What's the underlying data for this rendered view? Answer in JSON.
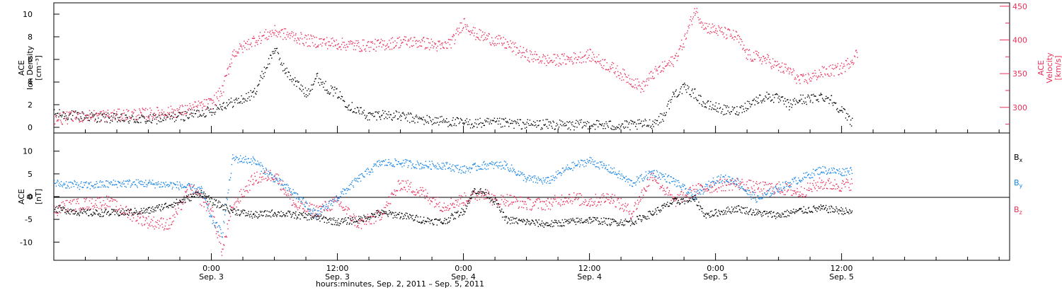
{
  "colors": {
    "density": "#000000",
    "velocity": "#e8305a",
    "bx": "#000000",
    "by": "#1a86e6",
    "bz": "#e8305a",
    "axis": "#000000"
  },
  "x_ticks": [
    {
      "time": "0:00",
      "date": "Sep. 3",
      "hours": 24
    },
    {
      "time": "12:00",
      "date": "Sep. 3",
      "hours": 36
    },
    {
      "time": "0:00",
      "date": "Sep. 4",
      "hours": 48
    },
    {
      "time": "12:00",
      "date": "Sep. 4",
      "hours": 60
    },
    {
      "time": "0:00",
      "date": "Sep. 5",
      "hours": 72
    },
    {
      "time": "12:00",
      "date": "Sep. 5",
      "hours": 84
    }
  ],
  "x_caption": "hours:minutes, Sep.  2, 2011 – Sep.  5, 2011",
  "x_range_hours_from_sep2": [
    9.0,
    100.0
  ],
  "chart_data": [
    {
      "type": "scatter",
      "panel": "top",
      "ylabel": [
        "ACE",
        "Ion Density",
        "[cm⁻³]"
      ],
      "y2label": [
        "ACE",
        "Velocity",
        "[km/s]"
      ],
      "ylim": [
        -0.5,
        11
      ],
      "y2lim": [
        262,
        455
      ],
      "yticks": [
        0,
        2,
        4,
        6,
        8,
        10
      ],
      "y2ticks": [
        300,
        350,
        400,
        450
      ],
      "series": [
        {
          "axis": "left",
          "points": [
            [
              9,
              1.2
            ],
            [
              12,
              1.0
            ],
            [
              15,
              0.8
            ],
            [
              18,
              0.7
            ],
            [
              21,
              1.0
            ],
            [
              24,
              1.5
            ],
            [
              25,
              2.0
            ],
            [
              27,
              2.5
            ],
            [
              28,
              3.0
            ],
            [
              29,
              5.0
            ],
            [
              30,
              7.0
            ],
            [
              31,
              5.0
            ],
            [
              32,
              4.0
            ],
            [
              33,
              3.0
            ],
            [
              34,
              4.5
            ],
            [
              35,
              3.5
            ],
            [
              36,
              3.0
            ],
            [
              37,
              2.0
            ],
            [
              38,
              1.5
            ],
            [
              39,
              1.0
            ],
            [
              40,
              1.2
            ],
            [
              42,
              1.0
            ],
            [
              44,
              0.7
            ],
            [
              46,
              0.6
            ],
            [
              48,
              0.4
            ],
            [
              50,
              0.4
            ],
            [
              52,
              0.4
            ],
            [
              54,
              0.3
            ],
            [
              56,
              0.3
            ],
            [
              58,
              0.2
            ],
            [
              60,
              0.3
            ],
            [
              62,
              0.2
            ],
            [
              64,
              0.2
            ],
            [
              66,
              0.4
            ],
            [
              67,
              1.0
            ],
            [
              68,
              3.0
            ],
            [
              69,
              3.5
            ],
            [
              70,
              3.0
            ],
            [
              71,
              2.0
            ],
            [
              72,
              1.8
            ],
            [
              73,
              1.5
            ],
            [
              74,
              1.5
            ],
            [
              75,
              2.0
            ],
            [
              76,
              2.5
            ],
            [
              77,
              2.8
            ],
            [
              78,
              2.5
            ],
            [
              79,
              2.0
            ],
            [
              80,
              2.5
            ],
            [
              81,
              2.5
            ],
            [
              82,
              2.8
            ],
            [
              83,
              2.5
            ],
            [
              84,
              1.5
            ],
            [
              85,
              0.5
            ]
          ]
        },
        {
          "axis": "right",
          "points": [
            [
              9,
              283
            ],
            [
              12,
              288
            ],
            [
              15,
              289
            ],
            [
              18,
              291
            ],
            [
              21,
              295
            ],
            [
              24,
              307
            ],
            [
              25,
              325
            ],
            [
              26,
              380
            ],
            [
              28,
              400
            ],
            [
              30,
              413
            ],
            [
              32,
              405
            ],
            [
              33,
              400
            ],
            [
              34,
              398
            ],
            [
              36,
              395
            ],
            [
              38,
              392
            ],
            [
              40,
              393
            ],
            [
              42,
              398
            ],
            [
              44,
              397
            ],
            [
              46,
              390
            ],
            [
              47,
              400
            ],
            [
              48,
              428
            ],
            [
              49,
              410
            ],
            [
              50,
              405
            ],
            [
              51,
              400
            ],
            [
              52,
              395
            ],
            [
              54,
              378
            ],
            [
              56,
              370
            ],
            [
              58,
              372
            ],
            [
              60,
              378
            ],
            [
              62,
              360
            ],
            [
              64,
              340
            ],
            [
              65,
              330
            ],
            [
              66,
              350
            ],
            [
              67,
              360
            ],
            [
              68,
              370
            ],
            [
              69,
              400
            ],
            [
              70,
              445
            ],
            [
              71,
              420
            ],
            [
              72,
              415
            ],
            [
              73,
              410
            ],
            [
              74,
              405
            ],
            [
              75,
              378
            ],
            [
              76,
              375
            ],
            [
              77,
              370
            ],
            [
              78,
              360
            ],
            [
              79,
              355
            ],
            [
              80,
              340
            ],
            [
              81,
              345
            ],
            [
              82,
              352
            ],
            [
              83,
              355
            ],
            [
              84,
              358
            ],
            [
              85,
              372
            ],
            [
              85.5,
              382
            ]
          ]
        }
      ]
    },
    {
      "type": "scatter",
      "panel": "bottom",
      "ylabel": [
        "ACE",
        "B",
        "[nT]"
      ],
      "ylim": [
        -14,
        14
      ],
      "yticks": [
        -10,
        -5,
        0,
        5,
        10
      ],
      "legend_position": "right",
      "series": [
        {
          "name": "Bx",
          "points": [
            [
              9,
              -2.5
            ],
            [
              12,
              -3.5
            ],
            [
              15,
              -3.5
            ],
            [
              18,
              -3.0
            ],
            [
              21,
              -1.0
            ],
            [
              23,
              1.0
            ],
            [
              24,
              -1.0
            ],
            [
              26,
              -3.0
            ],
            [
              28,
              -4.0
            ],
            [
              30,
              -3.5
            ],
            [
              32,
              -4.0
            ],
            [
              34,
              -4.5
            ],
            [
              36,
              -5.5
            ],
            [
              38,
              -5.0
            ],
            [
              40,
              -3.5
            ],
            [
              42,
              -4.0
            ],
            [
              44,
              -5.0
            ],
            [
              46,
              -5.5
            ],
            [
              48,
              -3.0
            ],
            [
              49,
              1.5
            ],
            [
              50,
              1.0
            ],
            [
              51,
              -1.0
            ],
            [
              52,
              -5.0
            ],
            [
              54,
              -5.5
            ],
            [
              56,
              -6.0
            ],
            [
              58,
              -5.5
            ],
            [
              60,
              -5.0
            ],
            [
              62,
              -5.5
            ],
            [
              64,
              -5.5
            ],
            [
              66,
              -3.5
            ],
            [
              68,
              -1.0
            ],
            [
              70,
              -0.5
            ],
            [
              71,
              -4.0
            ],
            [
              72,
              -3.5
            ],
            [
              74,
              -2.5
            ],
            [
              76,
              -3.5
            ],
            [
              78,
              -4.0
            ],
            [
              80,
              -3.0
            ],
            [
              82,
              -2.5
            ],
            [
              84,
              -3.0
            ],
            [
              85,
              -3.5
            ]
          ]
        },
        {
          "name": "By",
          "points": [
            [
              9,
              3.0
            ],
            [
              12,
              2.5
            ],
            [
              15,
              3.0
            ],
            [
              18,
              3.0
            ],
            [
              21,
              2.5
            ],
            [
              23,
              1.5
            ],
            [
              24,
              -5.0
            ],
            [
              25,
              -8.0
            ],
            [
              26,
              8.5
            ],
            [
              28,
              8.0
            ],
            [
              30,
              4.0
            ],
            [
              32,
              0.5
            ],
            [
              34,
              -4.0
            ],
            [
              36,
              0.0
            ],
            [
              38,
              4.0
            ],
            [
              40,
              7.5
            ],
            [
              42,
              7.5
            ],
            [
              44,
              7.0
            ],
            [
              46,
              7.0
            ],
            [
              48,
              6.0
            ],
            [
              50,
              7.0
            ],
            [
              52,
              7.0
            ],
            [
              54,
              4.0
            ],
            [
              56,
              3.5
            ],
            [
              58,
              6.5
            ],
            [
              60,
              8.0
            ],
            [
              62,
              6.0
            ],
            [
              64,
              3.0
            ],
            [
              66,
              5.5
            ],
            [
              68,
              3.5
            ],
            [
              70,
              0.0
            ],
            [
              72,
              4.0
            ],
            [
              73,
              4.0
            ],
            [
              74,
              3.5
            ],
            [
              75,
              1.0
            ],
            [
              76,
              -0.5
            ],
            [
              78,
              2.0
            ],
            [
              80,
              4.0
            ],
            [
              82,
              6.0
            ],
            [
              84,
              5.5
            ],
            [
              85,
              6.0
            ]
          ]
        },
        {
          "name": "Bz",
          "points": [
            [
              9,
              -3.0
            ],
            [
              10,
              -2.0
            ],
            [
              12,
              -1.5
            ],
            [
              14,
              -1.0
            ],
            [
              16,
              -3.5
            ],
            [
              18,
              -5.5
            ],
            [
              20,
              -6.0
            ],
            [
              21,
              -2.0
            ],
            [
              22,
              2.0
            ],
            [
              24,
              -3.0
            ],
            [
              25,
              -12.0
            ],
            [
              26,
              -2.0
            ],
            [
              28,
              4.0
            ],
            [
              30,
              5.0
            ],
            [
              32,
              -2.0
            ],
            [
              34,
              -3.0
            ],
            [
              36,
              -1.0
            ],
            [
              38,
              -6.0
            ],
            [
              40,
              -4.0
            ],
            [
              42,
              3.0
            ],
            [
              44,
              1.0
            ],
            [
              46,
              -2.0
            ],
            [
              48,
              -0.5
            ],
            [
              50,
              1.0
            ],
            [
              51,
              -1.0
            ],
            [
              52,
              -0.5
            ],
            [
              54,
              -1.5
            ],
            [
              56,
              -1.5
            ],
            [
              58,
              0.0
            ],
            [
              60,
              -1.0
            ],
            [
              62,
              0.0
            ],
            [
              64,
              -3.5
            ],
            [
              66,
              5.0
            ],
            [
              68,
              -1.0
            ],
            [
              70,
              1.5
            ],
            [
              72,
              2.5
            ],
            [
              74,
              3.0
            ],
            [
              76,
              2.0
            ],
            [
              78,
              2.0
            ],
            [
              80,
              1.0
            ],
            [
              82,
              3.0
            ],
            [
              84,
              2.5
            ],
            [
              85,
              3.0
            ]
          ]
        }
      ]
    }
  ]
}
